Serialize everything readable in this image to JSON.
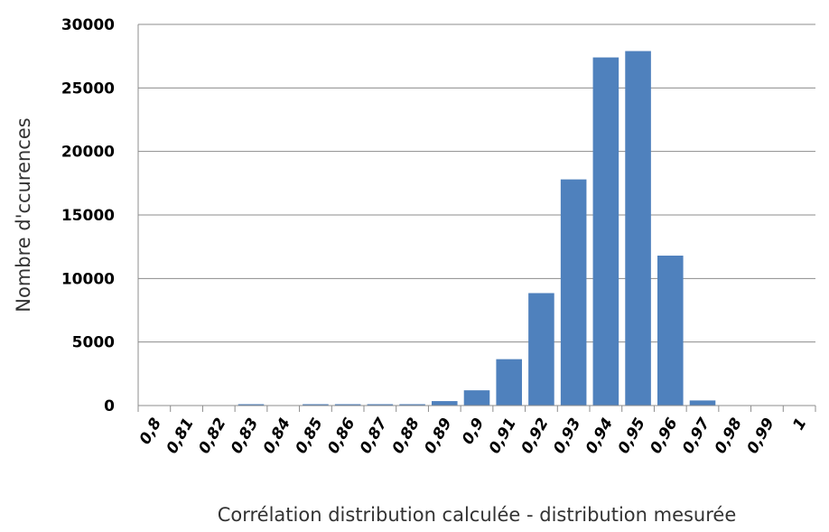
{
  "chart_data": {
    "type": "bar",
    "title": "",
    "xlabel": "Corrélation distribution calculée - distribution mesurée",
    "ylabel": "Nombre d'ccurences",
    "ylim": [
      0,
      30000
    ],
    "yticks": [
      0,
      5000,
      10000,
      15000,
      20000,
      25000,
      30000
    ],
    "grid": "horizontal",
    "legend": "none",
    "bar_color": "#4f81bd",
    "categories": [
      "0,8",
      "0,81",
      "0,82",
      "0,83",
      "0,84",
      "0,85",
      "0,86",
      "0,87",
      "0,88",
      "0,89",
      "0,9",
      "0,91",
      "0,92",
      "0,93",
      "0,94",
      "0,95",
      "0,96",
      "0,97",
      "0,98",
      "0,99",
      "1"
    ],
    "values": [
      0,
      0,
      0,
      60,
      0,
      70,
      80,
      80,
      90,
      350,
      1200,
      3650,
      8850,
      17800,
      27400,
      27900,
      11800,
      400,
      0,
      0,
      0
    ]
  }
}
